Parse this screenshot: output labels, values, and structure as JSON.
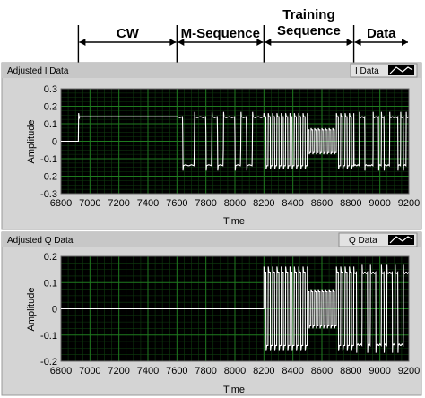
{
  "annotations": {
    "segments": [
      {
        "label_lines": [
          "CW"
        ],
        "from": 6920,
        "to": 7600
      },
      {
        "label_lines": [
          "M-Sequence"
        ],
        "from": 7600,
        "to": 8200
      },
      {
        "label_lines": [
          "Training",
          "Sequence"
        ],
        "from": 8200,
        "to": 8820
      },
      {
        "label_lines": [
          "Data"
        ],
        "from": 8820,
        "to": 9200
      }
    ]
  },
  "colors": {
    "plot_background": "#000000",
    "grid": "#1f7a1f",
    "trace": "#ffffff",
    "panel": "#d4d4d4",
    "title_bar": "#c7c7c7"
  },
  "chart_data": [
    {
      "type": "line",
      "title": "Adjusted I Data",
      "legend": "I Data",
      "legend_position": "top-right",
      "xlabel": "Time",
      "ylabel": "Amplitude",
      "xlim": [
        6800,
        9200
      ],
      "ylim": [
        -0.3,
        0.3
      ],
      "x_ticks": [
        6800,
        7000,
        7200,
        7400,
        7600,
        7800,
        8000,
        8200,
        8400,
        8600,
        8800,
        9000,
        9200
      ],
      "y_ticks": [
        "0.3",
        "0.2",
        "0.1",
        "0",
        "-0.1",
        "-0.2",
        "-0.3"
      ],
      "grid": true,
      "segments": {
        "zero": [
          6800,
          6920
        ],
        "cw": {
          "x": [
            6920,
            7600
          ],
          "level": 0.14
        },
        "m_sequence": {
          "x": [
            7600,
            8200
          ],
          "level": 0.14,
          "bits": [
            1,
            -1,
            -1,
            1,
            1,
            -1,
            1,
            -1,
            1,
            1,
            -1,
            1,
            -1,
            1,
            1
          ]
        },
        "training": {
          "x": [
            8200,
            8820
          ],
          "parts": [
            {
              "x": [
                8200,
                8500
              ],
              "level": 0.14,
              "period": 30
            },
            {
              "x": [
                8500,
                8700
              ],
              "level": 0.065,
              "period": 25
            },
            {
              "x": [
                8700,
                8820
              ],
              "level": 0.14,
              "period": 30
            }
          ]
        },
        "data": {
          "x": [
            8820,
            9200
          ],
          "level": 0.14,
          "bits": [
            -1,
            -1,
            1,
            1,
            -1,
            -1,
            -1,
            1,
            1,
            -1,
            1,
            -1,
            -1,
            1,
            1,
            1,
            -1,
            1,
            -1,
            1
          ]
        }
      }
    },
    {
      "type": "line",
      "title": "Adjusted Q Data",
      "legend": "Q Data",
      "legend_position": "top-right",
      "xlabel": "Time",
      "ylabel": "Amplitude",
      "xlim": [
        6800,
        9200
      ],
      "ylim": [
        -0.2,
        0.2
      ],
      "x_ticks": [
        6800,
        7000,
        7200,
        7400,
        7600,
        7800,
        8000,
        8200,
        8400,
        8600,
        8800,
        9000,
        9200
      ],
      "y_ticks": [
        "0.2",
        "0.1",
        "0",
        "-0.1",
        "-0.2"
      ],
      "grid": true,
      "segments": {
        "zero": [
          6800,
          8200
        ],
        "training": {
          "x": [
            8200,
            8820
          ],
          "parts": [
            {
              "x": [
                8200,
                8500
              ],
              "level": 0.14,
              "period": 30
            },
            {
              "x": [
                8500,
                8700
              ],
              "level": 0.065,
              "period": 25
            },
            {
              "x": [
                8700,
                8820
              ],
              "level": 0.14,
              "period": 30
            }
          ]
        },
        "data": {
          "x": [
            8820,
            9200
          ],
          "level": 0.14,
          "bits": [
            1,
            -1,
            -1,
            1,
            1,
            -1,
            1,
            1,
            -1,
            -1,
            1,
            -1,
            1,
            1,
            -1,
            1,
            -1,
            -1,
            1,
            1
          ]
        }
      }
    }
  ]
}
